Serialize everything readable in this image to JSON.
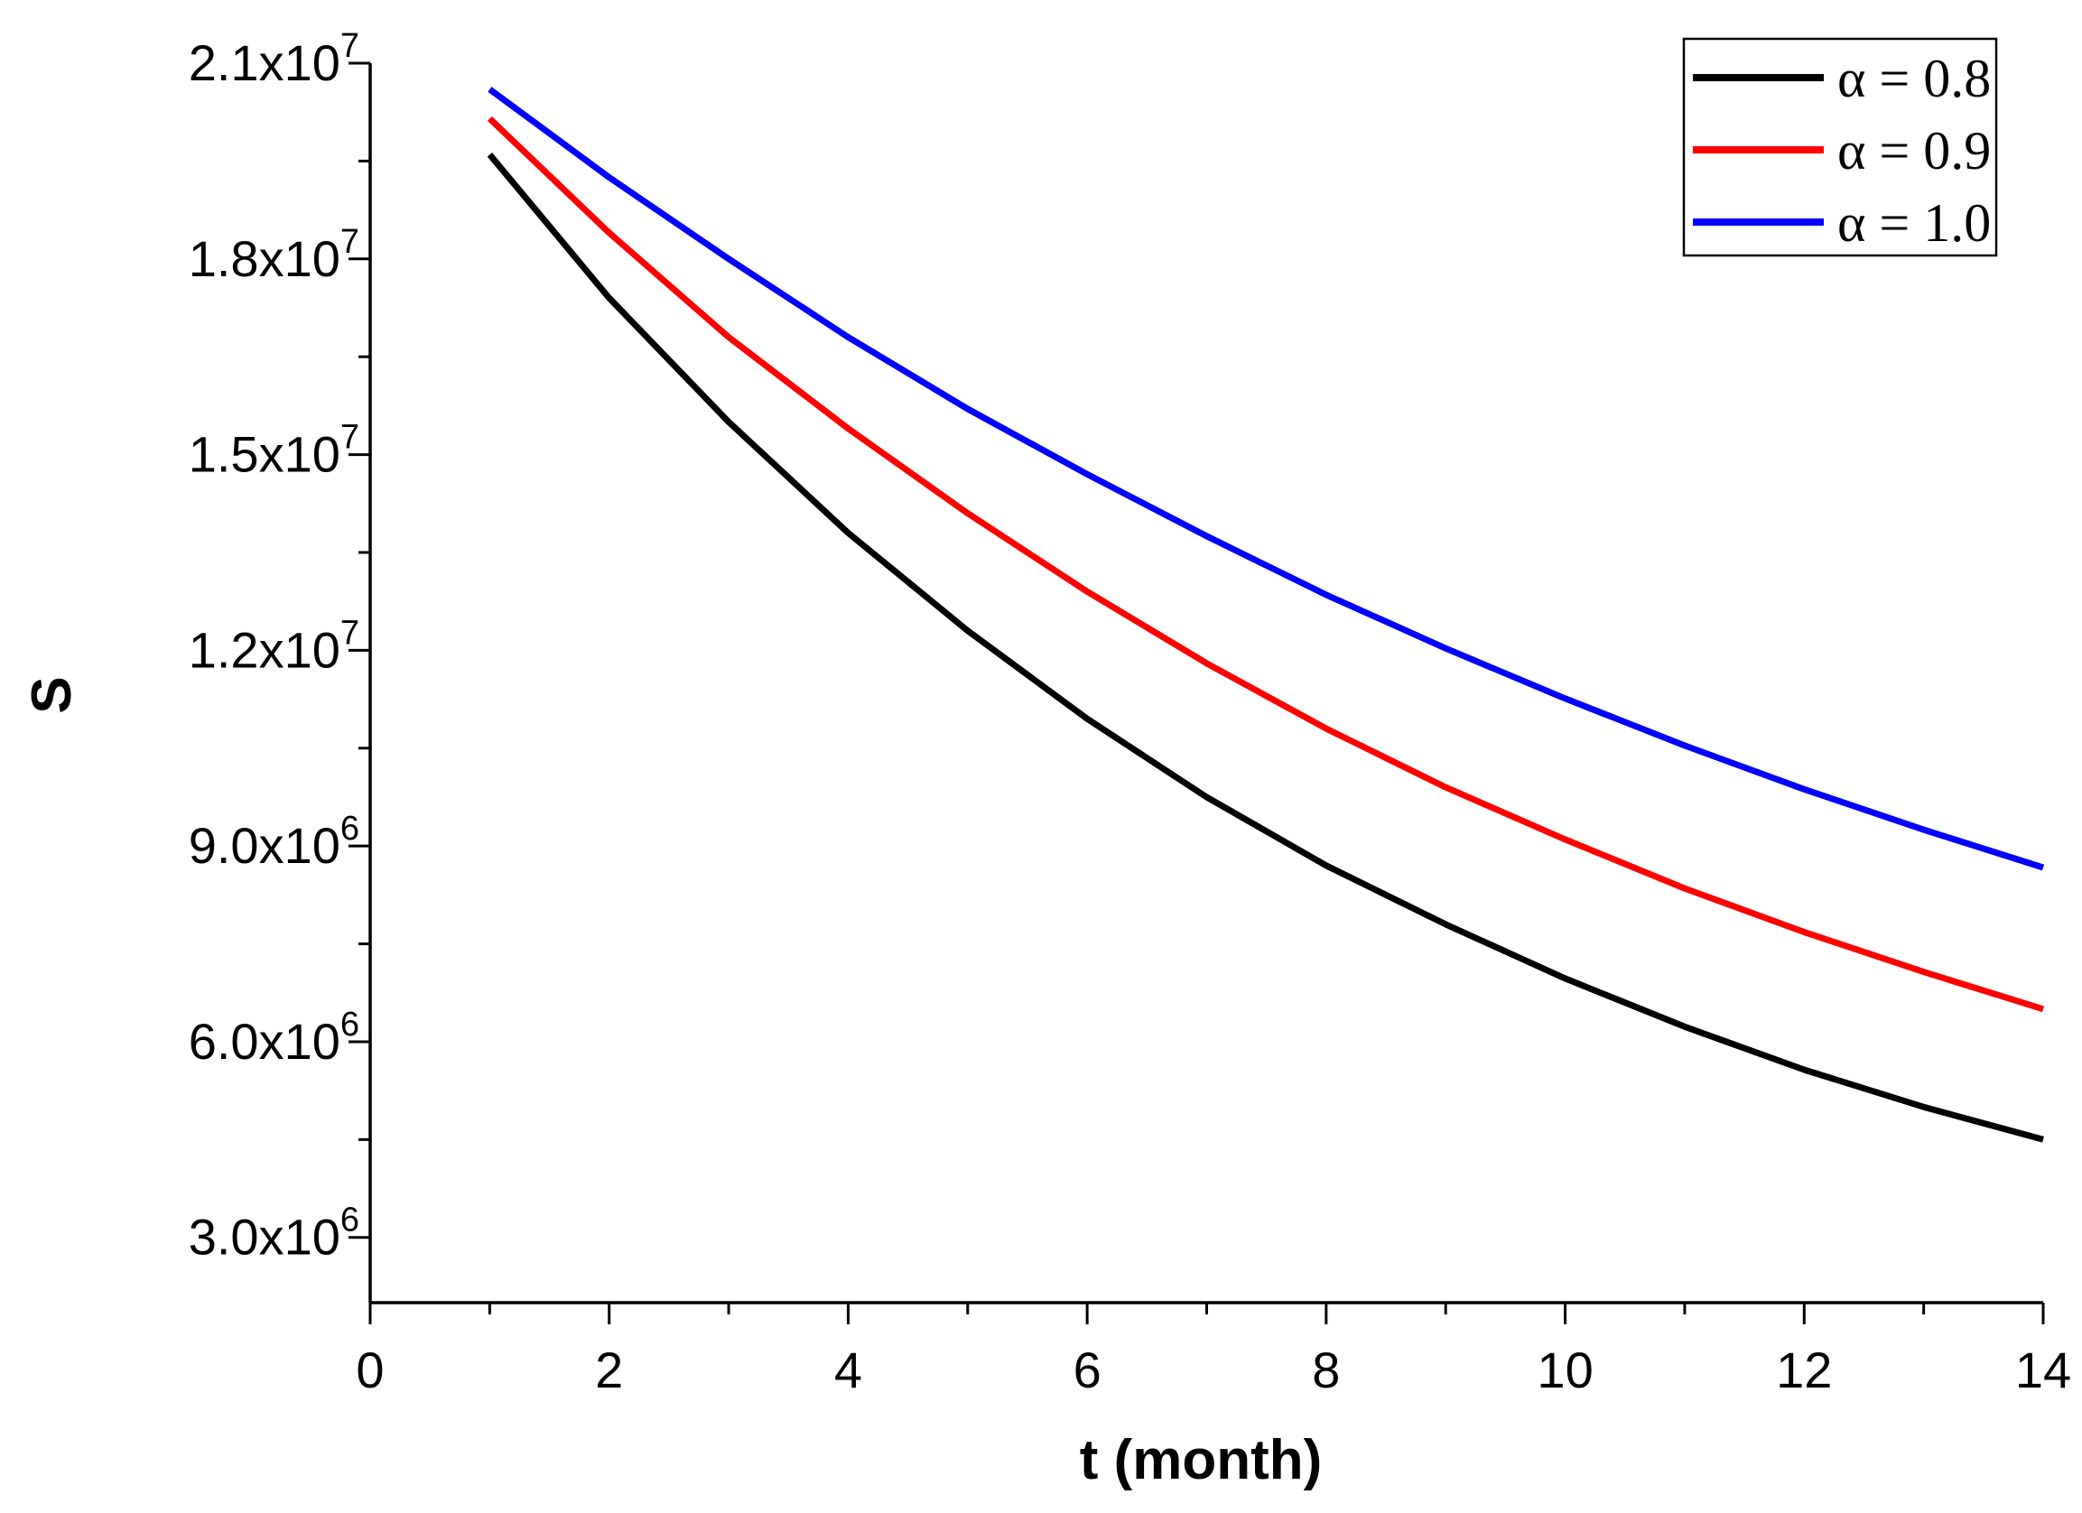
{
  "chart_data": {
    "type": "line",
    "title": "",
    "xlabel": "t  (month)",
    "ylabel": "S",
    "xlim": [
      0,
      14
    ],
    "ylim": [
      2000000,
      21000000
    ],
    "x_ticks": [
      0,
      2,
      4,
      6,
      8,
      10,
      12,
      14
    ],
    "x_tick_labels": [
      "0",
      "2",
      "4",
      "6",
      "8",
      "10",
      "12",
      "14"
    ],
    "y_ticks": [
      {
        "value": 3000000,
        "mantissa": "3.0x10",
        "exponent": "6"
      },
      {
        "value": 6000000,
        "mantissa": "6.0x10",
        "exponent": "6"
      },
      {
        "value": 9000000,
        "mantissa": "9.0x10",
        "exponent": "6"
      },
      {
        "value": 12000000,
        "mantissa": "1.2x10",
        "exponent": "7"
      },
      {
        "value": 15000000,
        "mantissa": "1.5x10",
        "exponent": "7"
      },
      {
        "value": 18000000,
        "mantissa": "1.8x10",
        "exponent": "7"
      },
      {
        "value": 21000000,
        "mantissa": "2.1x10",
        "exponent": "7"
      }
    ],
    "grid": false,
    "legend_position": "top-right",
    "x": [
      1,
      2,
      3,
      4,
      5,
      6,
      7,
      8,
      9,
      10,
      11,
      12,
      13,
      14
    ],
    "series": [
      {
        "name": "α = 0.8",
        "color": "#000000",
        "values": [
          19600000,
          17400000,
          15500000,
          13800000,
          12300000,
          10950000,
          9750000,
          8700000,
          7800000,
          6970000,
          6230000,
          5570000,
          5000000,
          4500000
        ]
      },
      {
        "name": "α = 0.9",
        "color": "#ff0000",
        "values": [
          20150000,
          18400000,
          16800000,
          15400000,
          14100000,
          12900000,
          11800000,
          10800000,
          9900000,
          9100000,
          8350000,
          7680000,
          7070000,
          6500000
        ]
      },
      {
        "name": "α = 1.0",
        "color": "#0000ff",
        "values": [
          20600000,
          19250000,
          18000000,
          16800000,
          15700000,
          14700000,
          13750000,
          12850000,
          12030000,
          11260000,
          10540000,
          9870000,
          9250000,
          8670000
        ]
      }
    ]
  }
}
